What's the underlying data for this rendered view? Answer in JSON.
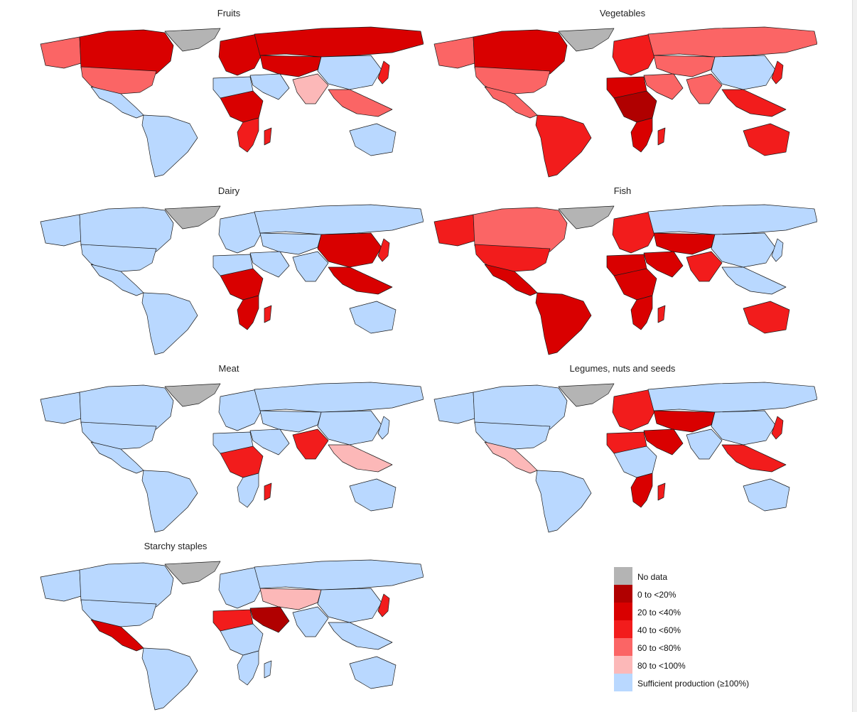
{
  "colors": {
    "no_data": "#b4b4b4",
    "c0_20": "#b00000",
    "c20_40": "#d90000",
    "c40_60": "#f21c1c",
    "c60_80": "#fb6565",
    "c80_100": "#fcb8b8",
    "sufficient": "#b9d8ff"
  },
  "panels": [
    {
      "title": "Fruits",
      "fills": {
        "greenland": "no_data",
        "north_america_north": "c20_40",
        "alaska": "c60_80",
        "usa": "c60_80",
        "mexico_central": "sufficient",
        "south_america": "sufficient",
        "europe": "c20_40",
        "russia": "c20_40",
        "middle_east": "sufficient",
        "north_africa": "sufficient",
        "central_africa": "c20_40",
        "southern_africa": "c40_60",
        "madagascar": "c40_60",
        "central_asia": "c20_40",
        "india": "c80_100",
        "china": "sufficient",
        "southeast_asia": "c60_80",
        "japan": "c40_60",
        "australia": "sufficient"
      }
    },
    {
      "title": "Vegetables",
      "fills": {
        "greenland": "no_data",
        "north_america_north": "c20_40",
        "alaska": "c60_80",
        "usa": "c60_80",
        "mexico_central": "c60_80",
        "south_america": "c40_60",
        "europe": "c40_60",
        "russia": "c60_80",
        "middle_east": "c60_80",
        "north_africa": "c20_40",
        "central_africa": "c0_20",
        "southern_africa": "c20_40",
        "madagascar": "c40_60",
        "central_asia": "c60_80",
        "india": "c60_80",
        "china": "sufficient",
        "southeast_asia": "c40_60",
        "japan": "c40_60",
        "australia": "c40_60"
      }
    },
    {
      "title": "Dairy",
      "fills": {
        "greenland": "no_data",
        "north_america_north": "sufficient",
        "alaska": "sufficient",
        "usa": "sufficient",
        "mexico_central": "sufficient",
        "south_america": "sufficient",
        "europe": "sufficient",
        "russia": "sufficient",
        "middle_east": "sufficient",
        "north_africa": "sufficient",
        "central_africa": "c20_40",
        "southern_africa": "c20_40",
        "madagascar": "c40_60",
        "central_asia": "sufficient",
        "india": "sufficient",
        "china": "c20_40",
        "southeast_asia": "c20_40",
        "japan": "c40_60",
        "australia": "sufficient"
      }
    },
    {
      "title": "Fish",
      "fills": {
        "greenland": "no_data",
        "north_america_north": "c60_80",
        "alaska": "c40_60",
        "usa": "c40_60",
        "mexico_central": "c20_40",
        "south_america": "c20_40",
        "europe": "c40_60",
        "russia": "sufficient",
        "middle_east": "c20_40",
        "north_africa": "c20_40",
        "central_africa": "c20_40",
        "southern_africa": "c20_40",
        "madagascar": "c40_60",
        "central_asia": "c20_40",
        "india": "c40_60",
        "china": "sufficient",
        "southeast_asia": "sufficient",
        "japan": "sufficient",
        "australia": "c40_60"
      }
    },
    {
      "title": "Meat",
      "fills": {
        "greenland": "no_data",
        "north_america_north": "sufficient",
        "alaska": "sufficient",
        "usa": "sufficient",
        "mexico_central": "sufficient",
        "south_america": "sufficient",
        "europe": "sufficient",
        "russia": "sufficient",
        "middle_east": "sufficient",
        "north_africa": "sufficient",
        "central_africa": "c40_60",
        "southern_africa": "sufficient",
        "madagascar": "c40_60",
        "central_asia": "sufficient",
        "india": "c40_60",
        "china": "sufficient",
        "southeast_asia": "c80_100",
        "japan": "sufficient",
        "australia": "sufficient"
      }
    },
    {
      "title": "Legumes, nuts and seeds",
      "fills": {
        "greenland": "no_data",
        "north_america_north": "sufficient",
        "alaska": "sufficient",
        "usa": "sufficient",
        "mexico_central": "c80_100",
        "south_america": "sufficient",
        "europe": "c40_60",
        "russia": "sufficient",
        "middle_east": "c20_40",
        "north_africa": "c40_60",
        "central_africa": "sufficient",
        "southern_africa": "c20_40",
        "madagascar": "c40_60",
        "central_asia": "c20_40",
        "india": "sufficient",
        "china": "sufficient",
        "southeast_asia": "c40_60",
        "japan": "c40_60",
        "australia": "sufficient"
      }
    },
    {
      "title": "Starchy staples",
      "fills": {
        "greenland": "no_data",
        "north_america_north": "sufficient",
        "alaska": "sufficient",
        "usa": "sufficient",
        "mexico_central": "c20_40",
        "south_america": "sufficient",
        "europe": "sufficient",
        "russia": "sufficient",
        "middle_east": "c0_20",
        "north_africa": "c40_60",
        "central_africa": "sufficient",
        "southern_africa": "sufficient",
        "madagascar": "sufficient",
        "central_asia": "c80_100",
        "india": "sufficient",
        "china": "sufficient",
        "southeast_asia": "sufficient",
        "japan": "c40_60",
        "australia": "sufficient"
      }
    }
  ],
  "legend": [
    {
      "label": "No data",
      "color": "no_data"
    },
    {
      "label": "0 to <20%",
      "color": "c0_20"
    },
    {
      "label": "20 to <40%",
      "color": "c20_40"
    },
    {
      "label": "40 to <60%",
      "color": "c40_60"
    },
    {
      "label": "60 to <80%",
      "color": "c60_80"
    },
    {
      "label": "80 to <100%",
      "color": "c80_100"
    },
    {
      "label": "Sufficient production (≥100%)",
      "color": "sufficient"
    }
  ]
}
